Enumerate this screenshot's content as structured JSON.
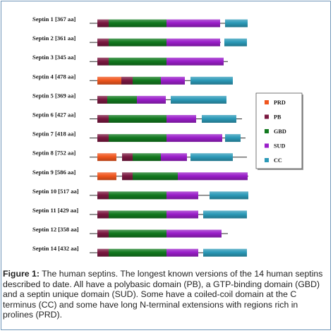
{
  "colors": {
    "PRD": "#f0561e",
    "PB": "#7a1840",
    "GBD": "#12791f",
    "SUD": "#9a1ec9",
    "CC": "#2c9ab8",
    "line": "#2a2a2a",
    "frame": "#6e95b8"
  },
  "legend": [
    {
      "key": "PRD",
      "label": "PRD"
    },
    {
      "key": "PB",
      "label": "PB"
    },
    {
      "key": "GBD",
      "label": "GBD"
    },
    {
      "key": "SUD",
      "label": "SUD"
    },
    {
      "key": "CC",
      "label": "CC"
    }
  ],
  "septins": [
    {
      "label": "Septin 1 [367 aa]",
      "end": 319,
      "domains": [
        [
          "PB",
          138,
          154
        ],
        [
          "GBD",
          154,
          236
        ],
        [
          "SUD",
          236,
          312
        ],
        [
          "CC",
          319,
          351
        ]
      ]
    },
    {
      "label": "Septin 2 [361 aa]",
      "end": 313,
      "domains": [
        [
          "PB",
          138,
          154
        ],
        [
          "GBD",
          154,
          236
        ],
        [
          "SUD",
          236,
          312
        ],
        [
          "CC",
          318,
          350
        ]
      ]
    },
    {
      "label": "Septin 3 [345 aa]",
      "end": 323,
      "domains": [
        [
          "PB",
          138,
          154
        ],
        [
          "GBD",
          154,
          236
        ],
        [
          "SUD",
          236,
          317
        ]
      ]
    },
    {
      "label": "Septin 4 [478 aa]",
      "end": 330,
      "domains": [
        [
          "PRD",
          138,
          172
        ],
        [
          "PB",
          172,
          188
        ],
        [
          "GBD",
          188,
          228
        ],
        [
          "SUD",
          228,
          262
        ],
        [
          "CC",
          270,
          330
        ]
      ]
    },
    {
      "label": "Septin 5 [369 aa]",
      "end": 321,
      "domains": [
        [
          "PB",
          138,
          152
        ],
        [
          "GBD",
          152,
          194
        ],
        [
          "SUD",
          194,
          235
        ],
        [
          "CC",
          242,
          321
        ]
      ]
    },
    {
      "label": "Septin 6 [427 aa]",
      "end": 343,
      "domains": [
        [
          "PB",
          138,
          154
        ],
        [
          "GBD",
          154,
          236
        ],
        [
          "SUD",
          236,
          278
        ],
        [
          "CC",
          286,
          335
        ]
      ]
    },
    {
      "label": "Septin 7 [418 aa]",
      "end": 348,
      "domains": [
        [
          "PB",
          138,
          154
        ],
        [
          "GBD",
          154,
          236
        ],
        [
          "SUD",
          236,
          315
        ],
        [
          "CC",
          319,
          341
        ]
      ]
    },
    {
      "label": "Septin 8 [752 aa]",
      "end": 350,
      "domains": [
        [
          "PRD",
          138,
          165
        ],
        [
          "PB",
          173,
          188
        ],
        [
          "GBD",
          188,
          228
        ],
        [
          "SUD",
          228,
          265
        ],
        [
          "CC",
          270,
          330
        ]
      ]
    },
    {
      "label": "Septin 9 [586 aa]",
      "end": 352,
      "domains": [
        [
          "PRD",
          138,
          165
        ],
        [
          "PB",
          173,
          188
        ],
        [
          "GBD",
          188,
          252
        ],
        [
          "SUD",
          252,
          351
        ]
      ]
    },
    {
      "label": "Septin 10 [517 aa]",
      "end": 352,
      "domains": [
        [
          "PB",
          138,
          154
        ],
        [
          "GBD",
          154,
          236
        ],
        [
          "SUD",
          236,
          281
        ],
        [
          "CC",
          297,
          352
        ]
      ]
    },
    {
      "label": "Septin 11 [429 aa]",
      "end": 350,
      "domains": [
        [
          "PB",
          138,
          154
        ],
        [
          "GBD",
          154,
          236
        ],
        [
          "SUD",
          236,
          281
        ],
        [
          "CC",
          288,
          350
        ]
      ]
    },
    {
      "label": "Septin 12 [358 aa]",
      "end": 323,
      "domains": [
        [
          "PB",
          138,
          154
        ],
        [
          "GBD",
          154,
          236
        ],
        [
          "SUD",
          236,
          314
        ]
      ]
    },
    {
      "label": "Septin 14 [432 aa]",
      "end": 350,
      "domains": [
        [
          "PB",
          138,
          154
        ],
        [
          "GBD",
          154,
          236
        ],
        [
          "SUD",
          236,
          281
        ],
        [
          "CC",
          288,
          350
        ]
      ]
    }
  ],
  "caption": {
    "prefix": "Figure 1:",
    "text": " The human septins. The longest known versions of the 14 human septins described to date. All have a polybasic domain (PB), a GTP-binding domain (GBD) and a septin unique domain (SUD). Some have a coiled-coil domain at the C terminus (CC) and some have long N-terminal extensions with regions rich in prolines (PRD)."
  }
}
